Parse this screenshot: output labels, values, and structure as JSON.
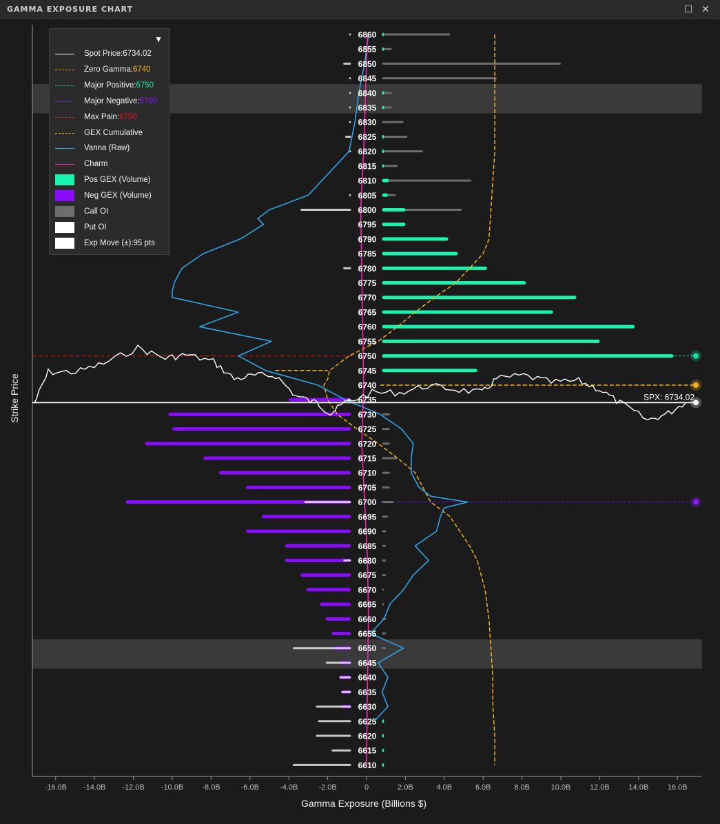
{
  "window": {
    "title": "GAMMA EXPOSURE CHART"
  },
  "legend": {
    "items": [
      {
        "label": "Spot Price: ",
        "value": "6734.02",
        "color": "#ffffff",
        "value_color": "#f2f2f2",
        "style": "solid"
      },
      {
        "label": "Zero Gamma: ",
        "value": "6740",
        "color": "#f4b31a",
        "value_color": "#f4b31a",
        "style": "dashed"
      },
      {
        "label": "Major Positive: ",
        "value": "6750",
        "color": "#19e0a8",
        "value_color": "#19e0a8",
        "style": "dotted"
      },
      {
        "label": "Major Negative: ",
        "value": "6700",
        "color": "#8a1cff",
        "value_color": "#8a1cff",
        "style": "dotted"
      },
      {
        "label": "Max Pain: ",
        "value": "6750",
        "color": "#e0181c",
        "value_color": "#e0181c",
        "style": "dashed"
      },
      {
        "label": "GEX Cumulative",
        "value": "",
        "color": "#f4b31a",
        "value_color": "",
        "style": "dashed"
      },
      {
        "label": "Vanna (Raw)",
        "value": "",
        "color": "#2fa4e7",
        "value_color": "",
        "style": "solid"
      },
      {
        "label": "Charm",
        "value": "",
        "color": "#ff1fb4",
        "value_color": "",
        "style": "solid"
      },
      {
        "label": "Pos GEX (Volume)",
        "value": "",
        "color": "#19f5b0",
        "value_color": "",
        "style": "box"
      },
      {
        "label": "Neg GEX (Volume)",
        "value": "",
        "color": "#8a0cff",
        "value_color": "",
        "style": "box"
      },
      {
        "label": "Call OI",
        "value": "",
        "color": "#6d6d6d",
        "value_color": "",
        "style": "box"
      },
      {
        "label": "Put OI",
        "value": "",
        "color": "#ffffff",
        "value_color": "",
        "style": "box"
      },
      {
        "label": "Exp Move (±): ",
        "value": "95 pts",
        "color": "#ffffff",
        "value_color": "#f2f2f2",
        "style": "box"
      }
    ]
  },
  "chart_data": {
    "type": "bar",
    "orientation": "horizontal",
    "title": "",
    "xlabel": "Gamma Exposure (Billions $)",
    "ylabel": "Strike Price",
    "xlim": [
      -17.6,
      17.0
    ],
    "ylim": [
      6607,
      6863
    ],
    "xticks": [
      "-16.0B",
      "-14.0B",
      "-12.0B",
      "-10.0B",
      "-8.0B",
      "-6.0B",
      "-4.0B",
      "-2.0B",
      "0",
      "2.0B",
      "4.0B",
      "6.0B",
      "8.0B",
      "10.0B",
      "12.0B",
      "14.0B",
      "16.0B"
    ],
    "xtick_values": [
      -16,
      -14,
      -12,
      -10,
      -8,
      -6,
      -4,
      -2,
      0,
      2,
      4,
      6,
      8,
      10,
      12,
      14,
      16
    ],
    "strikes": [
      6860,
      6855,
      6850,
      6845,
      6840,
      6835,
      6830,
      6825,
      6820,
      6815,
      6810,
      6805,
      6800,
      6795,
      6790,
      6785,
      6780,
      6775,
      6770,
      6765,
      6760,
      6755,
      6750,
      6745,
      6740,
      6735,
      6730,
      6725,
      6720,
      6715,
      6710,
      6705,
      6700,
      6695,
      6690,
      6685,
      6680,
      6675,
      6670,
      6665,
      6660,
      6655,
      6650,
      6645,
      6640,
      6635,
      6630,
      6625,
      6620,
      6615,
      6610
    ],
    "pos_gex": [
      0.1,
      0.1,
      0,
      0,
      0.1,
      0.1,
      0,
      0.1,
      0.1,
      0.1,
      0.35,
      0.3,
      1.2,
      1.2,
      3.4,
      3.9,
      5.4,
      7.4,
      10.0,
      8.8,
      13.0,
      11.2,
      15.0,
      4.9,
      0,
      0,
      0,
      0,
      0,
      0,
      0,
      0,
      0,
      0,
      0,
      0,
      0,
      0,
      0,
      0,
      0,
      0,
      0,
      0,
      0,
      0,
      0,
      0.1,
      0.1,
      0.1,
      0.1
    ],
    "neg_gex": [
      0,
      0,
      0,
      0,
      0,
      0,
      0,
      0,
      0,
      0,
      0,
      0,
      0,
      0,
      0,
      0,
      0,
      0,
      0,
      0,
      0,
      0,
      0,
      0,
      0,
      -3.2,
      -9.4,
      -9.2,
      -10.6,
      -7.6,
      -6.8,
      -5.4,
      -11.6,
      -4.6,
      -5.4,
      -3.4,
      -3.4,
      -2.6,
      -2.3,
      -1.6,
      -1.3,
      -1.0,
      -0.9,
      -0.6,
      -0.6,
      -0.5,
      -0.5,
      0,
      0,
      0,
      0
    ],
    "call_oi": [
      3.5,
      0.5,
      9.2,
      5.9,
      0.5,
      0.5,
      1.1,
      1.3,
      2.1,
      0.8,
      4.6,
      0.7,
      4.1,
      1.1,
      2.5,
      3.0,
      4.6,
      2.5,
      3.0,
      1.6,
      2.8,
      0.8,
      2.2,
      0.5,
      0,
      0,
      0.4,
      0.4,
      0.4,
      0.8,
      0.4,
      0.4,
      0.6,
      0.3,
      0.2,
      0.2,
      0.2,
      0.2,
      0.1,
      0.1,
      0.2,
      0.2,
      0.2,
      0,
      0,
      0,
      0,
      0,
      0,
      0,
      0
    ],
    "put_oi": [
      0.1,
      0,
      0.4,
      0.1,
      0.1,
      0.1,
      0.1,
      0.3,
      0.1,
      0,
      0,
      0.1,
      2.6,
      0,
      0,
      0,
      0.4,
      0,
      0,
      0,
      0,
      0,
      0,
      0,
      0,
      0.2,
      0,
      0,
      0,
      0,
      0,
      0,
      2.4,
      0,
      0,
      0,
      0.4,
      0,
      0,
      0,
      0,
      0,
      3.0,
      1.3,
      0.6,
      0.5,
      1.8,
      1.7,
      1.8,
      1.0,
      3.0
    ],
    "spot_price": 6734.02,
    "spot_label": "SPX: 6734.02",
    "zero_gamma": 6740,
    "major_positive": 6750,
    "major_negative": 6700,
    "max_pain": 6750,
    "gex_cumulative": {
      "strikes": [
        6860,
        6840,
        6820,
        6800,
        6790,
        6785,
        6780,
        6775,
        6770,
        6765,
        6760,
        6755,
        6750,
        6745,
        6742,
        6740,
        6735,
        6730,
        6725,
        6720,
        6715,
        6710,
        6705,
        6700,
        6695,
        6690,
        6685,
        6680,
        6670,
        6660,
        6650,
        6640,
        6630,
        6620,
        6610
      ],
      "values": [
        6.6,
        6.6,
        6.6,
        6.4,
        6.3,
        6.0,
        5.3,
        4.6,
        3.5,
        2.5,
        1.6,
        0.6,
        -0.9,
        -1.9,
        -2.0,
        -2.2,
        -2.0,
        -1.5,
        -0.5,
        0.6,
        1.6,
        2.5,
        2.9,
        3.3,
        4.3,
        4.8,
        5.3,
        5.7,
        6.1,
        6.3,
        6.4,
        6.5,
        6.5,
        6.6,
        6.6
      ]
    },
    "vanna_raw": {
      "strikes": [
        6860,
        6850,
        6840,
        6830,
        6820,
        6815,
        6810,
        6805,
        6800,
        6797,
        6795,
        6790,
        6785,
        6780,
        6775,
        6772,
        6770,
        6765,
        6760,
        6755,
        6750,
        6745,
        6740,
        6735,
        6730,
        6725,
        6720,
        6715,
        6710,
        6705,
        6702,
        6700,
        6698,
        6695,
        6690,
        6685,
        6680,
        6675,
        6670,
        6665,
        6660,
        6655,
        6650,
        6645,
        6640,
        6635,
        6630,
        6625
      ],
      "values": [
        0.1,
        -0.1,
        -0.4,
        -0.6,
        -0.9,
        -1.6,
        -2.3,
        -3.0,
        -5.0,
        -5.6,
        -5.3,
        -6.5,
        -8.4,
        -9.5,
        -9.9,
        -10.0,
        -10.0,
        -6.6,
        -8.6,
        -4.9,
        -6.6,
        -5.2,
        -2.5,
        -1.1,
        0.7,
        1.8,
        2.4,
        2.3,
        2.3,
        2.7,
        3.3,
        5.2,
        4.0,
        3.8,
        3.6,
        2.5,
        3.2,
        2.4,
        1.9,
        1.2,
        0.9,
        0.2,
        1.9,
        0.6,
        1.1,
        0.8,
        1.1,
        0.4
      ]
    },
    "charm": {
      "strikes": [
        6860,
        6840,
        6820,
        6800,
        6780,
        6760,
        6740,
        6720,
        6700,
        6680,
        6660,
        6640,
        6610
      ],
      "values": [
        0.05,
        -0.05,
        -0.15,
        -0.3,
        -0.25,
        -0.2,
        -0.15,
        -0.25,
        -0.1,
        0.05,
        0.1,
        0.05,
        0.0
      ]
    },
    "highlight_bands": [
      [
        6843,
        6833
      ],
      [
        6653,
        6643
      ]
    ],
    "grid": false,
    "legend_position": "top-left"
  },
  "colors": {
    "background": "#1b1b1b",
    "pos_gex": "#19f5b0",
    "neg_gex": "#8a0cff",
    "call_oi": "#6d6d6d",
    "put_oi": "#e6e6e6",
    "zero_gamma": "#f4b31a",
    "max_pain": "#e0181c",
    "vanna": "#2fa4e7",
    "charm": "#ff1fb4",
    "band": "#3a3a3a"
  }
}
